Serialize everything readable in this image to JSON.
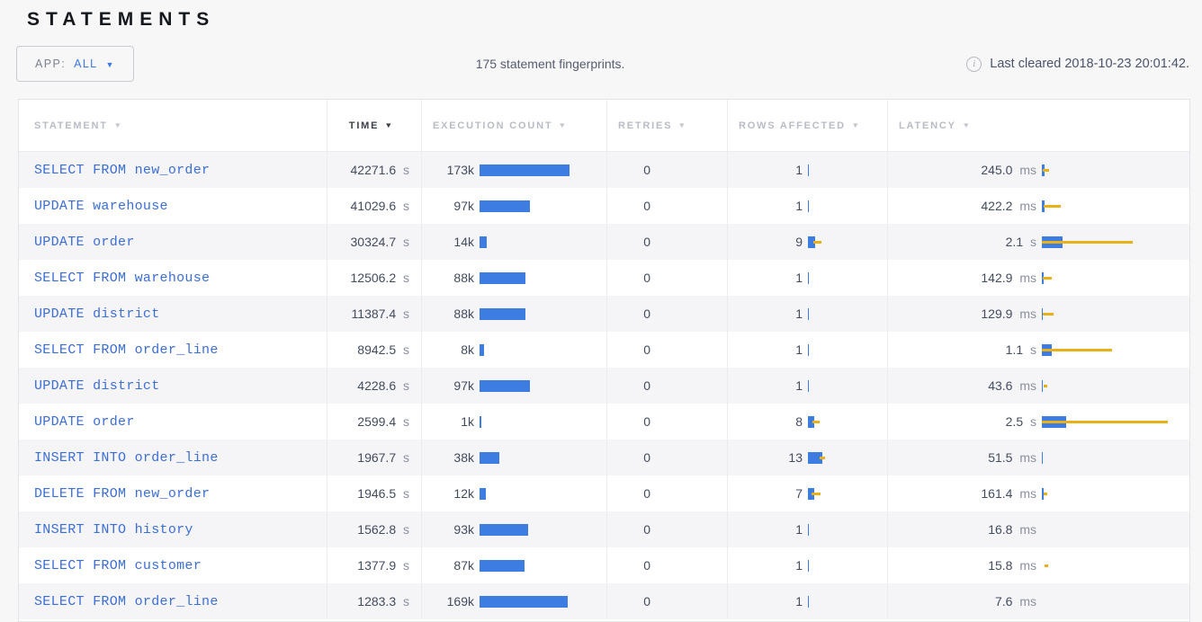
{
  "page": {
    "title": "STATEMENTS"
  },
  "toolbar": {
    "app_label": "APP:",
    "app_value": "ALL",
    "summary": "175 statement fingerprints.",
    "last_cleared": "Last cleared 2018-10-23 20:01:42."
  },
  "icons": {
    "sort_desc": "▼",
    "dropdown_caret": "▼",
    "info": "i"
  },
  "colors": {
    "bar_blue": "#3d7ce1",
    "bar_yellow": "#eab117",
    "link_blue": "#3c6ed8",
    "accent_blue": "#3c77e2"
  },
  "table": {
    "columns": [
      {
        "label": "STATEMENT",
        "active": false
      },
      {
        "label": "TIME",
        "active": true
      },
      {
        "label": "EXECUTION COUNT",
        "active": false
      },
      {
        "label": "RETRIES",
        "active": false
      },
      {
        "label": "ROWS AFFECTED",
        "active": false
      },
      {
        "label": "LATENCY",
        "active": false
      }
    ],
    "rows": [
      {
        "statement": "SELECT FROM new_order",
        "time": "42271.6",
        "time_unit": "s",
        "count": "173k",
        "count_bar": 100,
        "retries": "0",
        "rows": "1",
        "rows_bar": {
          "w": 1,
          "df": 0,
          "dt": 0
        },
        "latency": "245.0",
        "latency_unit": "ms",
        "lat_bar": {
          "w": 3,
          "df": 1,
          "dt": 8
        }
      },
      {
        "statement": "UPDATE warehouse",
        "time": "41029.6",
        "time_unit": "s",
        "count": "97k",
        "count_bar": 56,
        "retries": "0",
        "rows": "1",
        "rows_bar": {
          "w": 1,
          "df": 0,
          "dt": 0
        },
        "latency": "422.2",
        "latency_unit": "ms",
        "lat_bar": {
          "w": 3,
          "df": 2,
          "dt": 21
        }
      },
      {
        "statement": "UPDATE order",
        "time": "30324.7",
        "time_unit": "s",
        "count": "14k",
        "count_bar": 8,
        "retries": "0",
        "rows": "9",
        "rows_bar": {
          "w": 8,
          "df": 6,
          "dt": 15
        },
        "latency": "2.1",
        "latency_unit": "s",
        "lat_bar": {
          "w": 23,
          "df": 0,
          "dt": 101
        }
      },
      {
        "statement": "SELECT FROM warehouse",
        "time": "12506.2",
        "time_unit": "s",
        "count": "88k",
        "count_bar": 51,
        "retries": "0",
        "rows": "1",
        "rows_bar": {
          "w": 1,
          "df": 0,
          "dt": 0
        },
        "latency": "142.9",
        "latency_unit": "ms",
        "lat_bar": {
          "w": 2,
          "df": 1,
          "dt": 11
        }
      },
      {
        "statement": "UPDATE district",
        "time": "11387.4",
        "time_unit": "s",
        "count": "88k",
        "count_bar": 51,
        "retries": "0",
        "rows": "1",
        "rows_bar": {
          "w": 1,
          "df": 0,
          "dt": 0
        },
        "latency": "129.9",
        "latency_unit": "ms",
        "lat_bar": {
          "w": 1,
          "df": 1,
          "dt": 13
        }
      },
      {
        "statement": "SELECT FROM order_line",
        "time": "8942.5",
        "time_unit": "s",
        "count": "8k",
        "count_bar": 5,
        "retries": "0",
        "rows": "1",
        "rows_bar": {
          "w": 1,
          "df": 0,
          "dt": 0
        },
        "latency": "1.1",
        "latency_unit": "s",
        "lat_bar": {
          "w": 11,
          "df": 0,
          "dt": 78
        }
      },
      {
        "statement": "UPDATE district",
        "time": "4228.6",
        "time_unit": "s",
        "count": "97k",
        "count_bar": 56,
        "retries": "0",
        "rows": "1",
        "rows_bar": {
          "w": 1,
          "df": 0,
          "dt": 0
        },
        "latency": "43.6",
        "latency_unit": "ms",
        "lat_bar": {
          "w": 1,
          "df": 2,
          "dt": 6
        }
      },
      {
        "statement": "UPDATE order",
        "time": "2599.4",
        "time_unit": "s",
        "count": "1k",
        "count_bar": 2,
        "retries": "0",
        "rows": "8",
        "rows_bar": {
          "w": 7,
          "df": 5,
          "dt": 13
        },
        "latency": "2.5",
        "latency_unit": "s",
        "lat_bar": {
          "w": 27,
          "df": 0,
          "dt": 140
        }
      },
      {
        "statement": "INSERT INTO order_line",
        "time": "1967.7",
        "time_unit": "s",
        "count": "38k",
        "count_bar": 22,
        "retries": "0",
        "rows": "13",
        "rows_bar": {
          "w": 16,
          "df": 13,
          "dt": 19
        },
        "latency": "51.5",
        "latency_unit": "ms",
        "lat_bar": {
          "w": 1,
          "df": 0,
          "dt": 0
        }
      },
      {
        "statement": "DELETE FROM new_order",
        "time": "1946.5",
        "time_unit": "s",
        "count": "12k",
        "count_bar": 7,
        "retries": "0",
        "rows": "7",
        "rows_bar": {
          "w": 7,
          "df": 4,
          "dt": 14
        },
        "latency": "161.4",
        "latency_unit": "ms",
        "lat_bar": {
          "w": 2,
          "df": 2,
          "dt": 6
        }
      },
      {
        "statement": "INSERT INTO history",
        "time": "1562.8",
        "time_unit": "s",
        "count": "93k",
        "count_bar": 54,
        "retries": "0",
        "rows": "1",
        "rows_bar": {
          "w": 1,
          "df": 0,
          "dt": 0
        },
        "latency": "16.8",
        "latency_unit": "ms",
        "lat_bar": {
          "w": 0,
          "df": 0,
          "dt": 0
        }
      },
      {
        "statement": "SELECT FROM customer",
        "time": "1377.9",
        "time_unit": "s",
        "count": "87k",
        "count_bar": 50,
        "retries": "0",
        "rows": "1",
        "rows_bar": {
          "w": 1,
          "df": 0,
          "dt": 0
        },
        "latency": "15.8",
        "latency_unit": "ms",
        "lat_bar": {
          "w": 0,
          "df": 3,
          "dt": 7
        }
      },
      {
        "statement": "SELECT FROM order_line",
        "time": "1283.3",
        "time_unit": "s",
        "count": "169k",
        "count_bar": 98,
        "retries": "0",
        "rows": "1",
        "rows_bar": {
          "w": 1,
          "df": 0,
          "dt": 0
        },
        "latency": "7.6",
        "latency_unit": "ms",
        "lat_bar": {
          "w": 0,
          "df": 0,
          "dt": 0
        }
      }
    ]
  }
}
